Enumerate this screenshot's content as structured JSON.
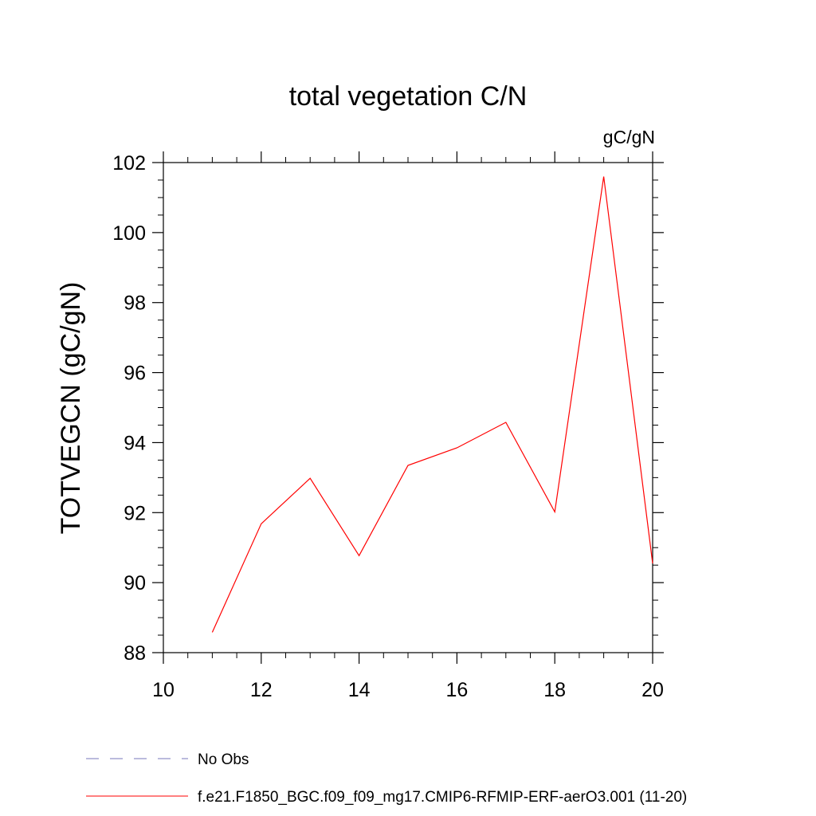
{
  "chart_data": {
    "type": "line",
    "title": "total vegetation C/N",
    "units_label": "gC/gN",
    "ylabel": "TOTVEGCN  (gC/gN)",
    "xlabel": "",
    "xlim": [
      10,
      20
    ],
    "ylim": [
      88,
      102
    ],
    "x_ticks": [
      10,
      12,
      14,
      16,
      18,
      20
    ],
    "x_tick_labels": [
      "10",
      "12",
      "14",
      "16",
      "18",
      "20"
    ],
    "y_ticks": [
      88,
      90,
      92,
      94,
      96,
      98,
      100,
      102
    ],
    "y_tick_labels": [
      "88",
      "90",
      "92",
      "94",
      "96",
      "98",
      "100",
      "102"
    ],
    "grid": false,
    "series": [
      {
        "name": "f.e21.F1850_BGC.f09_f09_mg17.CMIP6-RFMIP-ERF-aerO3.001 (11-20)",
        "color": "#ff0000",
        "x": [
          11,
          12,
          13,
          14,
          15,
          16,
          17,
          18,
          19,
          20
        ],
        "y": [
          88.58,
          91.68,
          92.98,
          90.77,
          93.35,
          93.85,
          94.58,
          92.02,
          101.6,
          90.55
        ]
      }
    ],
    "legend": {
      "placement": "bottom",
      "entries": [
        {
          "label": "No Obs",
          "color": "#7777bb",
          "style": "dashed"
        },
        {
          "label": "f.e21.F1850_BGC.f09_f09_mg17.CMIP6-RFMIP-ERF-aerO3.001 (11-20)",
          "color": "#ff0000",
          "style": "solid"
        }
      ]
    }
  }
}
